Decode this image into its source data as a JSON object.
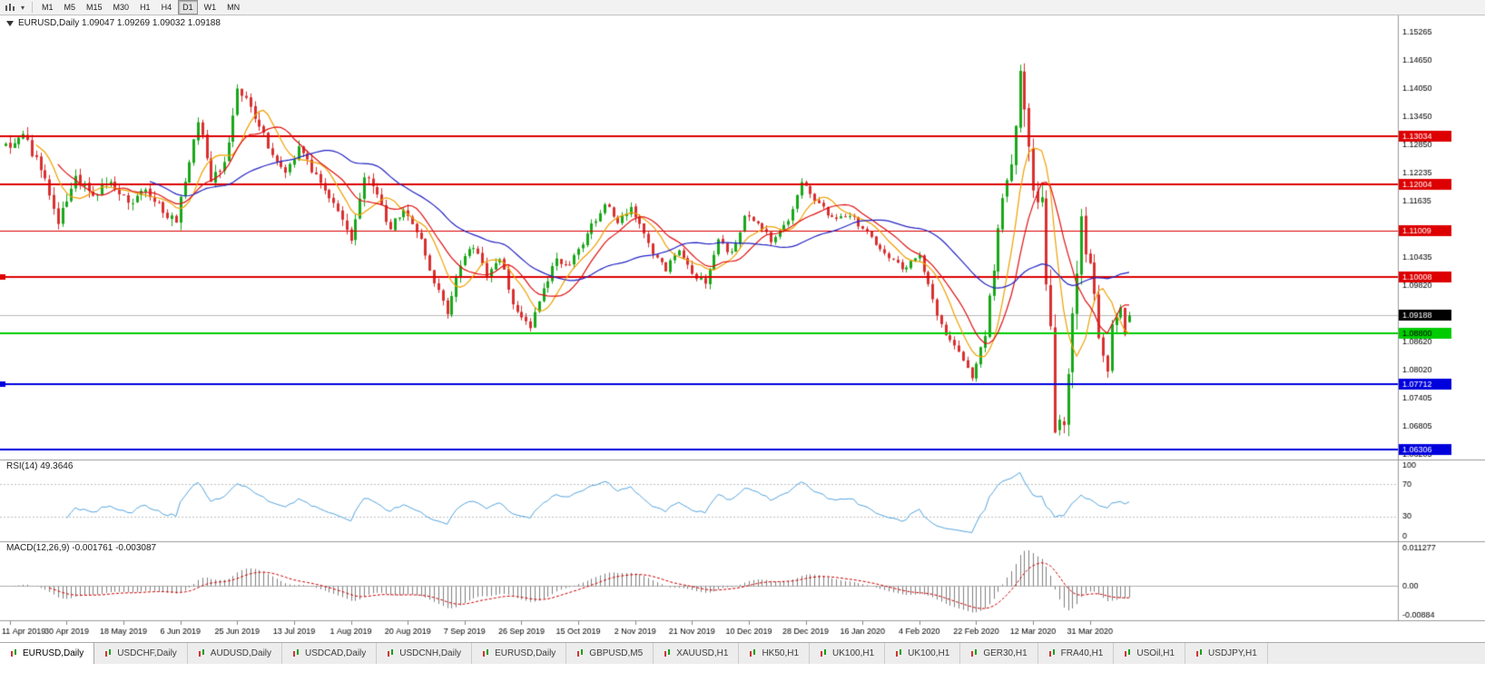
{
  "toolbar": {
    "timeframes": [
      "M1",
      "M5",
      "M15",
      "M30",
      "H1",
      "H4",
      "D1",
      "W1",
      "MN"
    ],
    "active_timeframe": "D1"
  },
  "chart_data": {
    "type": "candlestick",
    "symbol": "EURUSD",
    "timeframe": "Daily",
    "title": "EURUSD,Daily 1.09047 1.09269 1.09032 1.09188",
    "ohlc_current": {
      "open": 1.09047,
      "high": 1.09269,
      "low": 1.09032,
      "close": 1.09188
    },
    "last_price": 1.09188,
    "last_price_label": "1.09188",
    "price_axis_range": [
      1.0612,
      1.1562
    ],
    "price_scale": [
      "1.15265",
      "1.14650",
      "1.14050",
      "1.13450",
      "1.12850",
      "1.12235",
      "1.11635",
      "1.10435",
      "1.09820",
      "1.08620",
      "1.08020",
      "1.07405",
      "1.06805",
      "1.06205"
    ],
    "dates": [
      "11 Apr 2019",
      "30 Apr 2019",
      "18 May 2019",
      "6 Jun 2019",
      "25 Jun 2019",
      "13 Jul 2019",
      "1 Aug 2019",
      "20 Aug 2019",
      "7 Sep 2019",
      "26 Sep 2019",
      "15 Oct 2019",
      "2 Nov 2019",
      "21 Nov 2019",
      "10 Dec 2019",
      "28 Dec 2019",
      "16 Jan 2020",
      "4 Feb 2020",
      "22 Feb 2020",
      "12 Mar 2020",
      "31 Mar 2020"
    ],
    "hlines": [
      {
        "price": 1.13034,
        "label": "1.13034",
        "color": "#dd0000",
        "width": 2,
        "text": "#ffffff"
      },
      {
        "price": 1.12004,
        "label": "1.12004",
        "color": "#dd0000",
        "width": 2,
        "text": "#ffffff"
      },
      {
        "price": 1.11009,
        "label": "1.11009",
        "color": "#dd0000",
        "width": 1,
        "text": "#ffffff"
      },
      {
        "price": 1.10008,
        "label": "1.10008",
        "color": "#dd0000",
        "width": 2,
        "text": "#ffffff",
        "edge_marker": true
      },
      {
        "price": 1.088,
        "label": "1.08800",
        "color": "#00cc00",
        "width": 2,
        "text": "#000000"
      },
      {
        "price": 1.07712,
        "label": "1.07712",
        "color": "#0000dd",
        "width": 2,
        "text": "#ffffff",
        "edge_marker": true
      },
      {
        "price": 1.06306,
        "label": "1.06306",
        "color": "#0000dd",
        "width": 2,
        "text": "#ffffff"
      }
    ],
    "moving_averages": [
      {
        "period": 8,
        "color": "#f0a000"
      },
      {
        "period": 13,
        "color": "#e01010"
      },
      {
        "period": 34,
        "color": "#2424c4"
      }
    ],
    "rsi": {
      "label": "RSI(14) 49.3646",
      "period": 14,
      "value": 49.3646,
      "scale": [
        "100",
        "70",
        "30",
        "0"
      ],
      "levels": [
        70,
        30
      ]
    },
    "macd": {
      "label": "MACD(12,26,9) -0.001761 -0.003087",
      "fast": 12,
      "slow": 26,
      "signal": 9,
      "value": -0.001761,
      "signal_value": -0.003087,
      "scale": [
        "0.011277",
        "0.00",
        "-0.00884"
      ],
      "range": [
        -0.0094,
        0.0118
      ]
    },
    "colors": {
      "up": "#19a819",
      "down": "#d93030",
      "rsi": "#55a5e0",
      "macd_hist": "#808080",
      "macd_signal": "#d00000",
      "last_price_line": "#b8b8b8",
      "separator": "#9a9a9a",
      "level_dotted": "#c0c0c0",
      "axis_text": "#000000"
    },
    "candles_approx": {
      "n": 258,
      "seed": 11,
      "label_every": 13,
      "label_offset": 1,
      "anchors": [
        [
          0,
          1.128,
          0.004
        ],
        [
          4,
          1.1302,
          0.004
        ],
        [
          8,
          1.124,
          0.004
        ],
        [
          12,
          1.1125,
          0.004
        ],
        [
          16,
          1.1215,
          0.004
        ],
        [
          20,
          1.1175,
          0.0035
        ],
        [
          24,
          1.121,
          0.0035
        ],
        [
          28,
          1.116,
          0.0035
        ],
        [
          32,
          1.119,
          0.0035
        ],
        [
          36,
          1.114,
          0.0035
        ],
        [
          39,
          1.1125,
          0.0035
        ],
        [
          42,
          1.1255,
          0.004
        ],
        [
          44,
          1.1335,
          0.004
        ],
        [
          47,
          1.1215,
          0.004
        ],
        [
          50,
          1.1245,
          0.004
        ],
        [
          53,
          1.1395,
          0.004
        ],
        [
          56,
          1.137,
          0.0035
        ],
        [
          60,
          1.1285,
          0.0035
        ],
        [
          64,
          1.123,
          0.003
        ],
        [
          67,
          1.1275,
          0.003
        ],
        [
          71,
          1.122,
          0.003
        ],
        [
          75,
          1.1155,
          0.003
        ],
        [
          79,
          1.1085,
          0.0035
        ],
        [
          82,
          1.1225,
          0.004
        ],
        [
          85,
          1.1175,
          0.0035
        ],
        [
          88,
          1.1105,
          0.0035
        ],
        [
          91,
          1.115,
          0.003
        ],
        [
          95,
          1.1085,
          0.003
        ],
        [
          98,
          1.099,
          0.003
        ],
        [
          101,
          1.093,
          0.003
        ],
        [
          104,
          1.103,
          0.003
        ],
        [
          107,
          1.107,
          0.003
        ],
        [
          110,
          1.1005,
          0.003
        ],
        [
          113,
          1.1045,
          0.003
        ],
        [
          116,
          1.0945,
          0.003
        ],
        [
          120,
          1.089,
          0.003
        ],
        [
          123,
          1.098,
          0.003
        ],
        [
          126,
          1.104,
          0.003
        ],
        [
          129,
          1.1025,
          0.0025
        ],
        [
          133,
          1.1095,
          0.0025
        ],
        [
          137,
          1.116,
          0.0025
        ],
        [
          140,
          1.1115,
          0.0025
        ],
        [
          143,
          1.115,
          0.0025
        ],
        [
          147,
          1.107,
          0.0025
        ],
        [
          151,
          1.1015,
          0.0025
        ],
        [
          154,
          1.1065,
          0.0025
        ],
        [
          157,
          1.101,
          0.0025
        ],
        [
          160,
          1.0985,
          0.0025
        ],
        [
          163,
          1.108,
          0.0025
        ],
        [
          166,
          1.105,
          0.0025
        ],
        [
          169,
          1.113,
          0.0025
        ],
        [
          172,
          1.112,
          0.002
        ],
        [
          175,
          1.108,
          0.002
        ],
        [
          179,
          1.112,
          0.002
        ],
        [
          182,
          1.1205,
          0.002
        ],
        [
          185,
          1.117,
          0.002
        ],
        [
          189,
          1.1125,
          0.002
        ],
        [
          193,
          1.1135,
          0.002
        ],
        [
          197,
          1.1095,
          0.002
        ],
        [
          201,
          1.1055,
          0.002
        ],
        [
          205,
          1.102,
          0.002
        ],
        [
          209,
          1.1045,
          0.0025
        ],
        [
          212,
          1.095,
          0.0025
        ],
        [
          215,
          1.0875,
          0.0025
        ],
        [
          218,
          1.0835,
          0.0025
        ],
        [
          221,
          1.0785,
          0.0025
        ],
        [
          224,
          1.088,
          0.003
        ],
        [
          226,
          1.1025,
          0.004
        ],
        [
          228,
          1.117,
          0.005
        ],
        [
          230,
          1.124,
          0.006
        ],
        [
          232,
          1.145,
          0.01
        ],
        [
          234,
          1.128,
          0.01
        ],
        [
          235,
          1.1185,
          0.009
        ],
        [
          237,
          1.118,
          0.009
        ],
        [
          238,
          1.0995,
          0.009
        ],
        [
          239,
          1.0915,
          0.01
        ],
        [
          240,
          1.0695,
          0.01
        ],
        [
          242,
          1.068,
          0.009
        ],
        [
          243,
          1.079,
          0.008
        ],
        [
          245,
          1.103,
          0.008
        ],
        [
          246,
          1.114,
          0.007
        ],
        [
          247,
          1.105,
          0.006
        ],
        [
          248,
          1.103,
          0.005
        ],
        [
          249,
          1.096,
          0.005
        ],
        [
          250,
          1.086,
          0.005
        ],
        [
          252,
          1.079,
          0.004
        ],
        [
          253,
          1.0895,
          0.004
        ],
        [
          255,
          1.093,
          0.0035
        ],
        [
          256,
          1.088,
          0.003
        ],
        [
          257,
          1.0919,
          0.003
        ]
      ]
    }
  },
  "tabs": [
    {
      "label": "EURUSD,Daily",
      "active": true
    },
    {
      "label": "USDCHF,Daily",
      "active": false
    },
    {
      "label": "AUDUSD,Daily",
      "active": false
    },
    {
      "label": "USDCAD,Daily",
      "active": false
    },
    {
      "label": "USDCNH,Daily",
      "active": false
    },
    {
      "label": "EURUSD,Daily",
      "active": false
    },
    {
      "label": "GBPUSD,M5",
      "active": false
    },
    {
      "label": "XAUUSD,H1",
      "active": false
    },
    {
      "label": "HK50,H1",
      "active": false
    },
    {
      "label": "UK100,H1",
      "active": false
    },
    {
      "label": "UK100,H1",
      "active": false
    },
    {
      "label": "GER30,H1",
      "active": false
    },
    {
      "label": "FRA40,H1",
      "active": false
    },
    {
      "label": "USOil,H1",
      "active": false
    },
    {
      "label": "USDJPY,H1",
      "active": false
    }
  ]
}
